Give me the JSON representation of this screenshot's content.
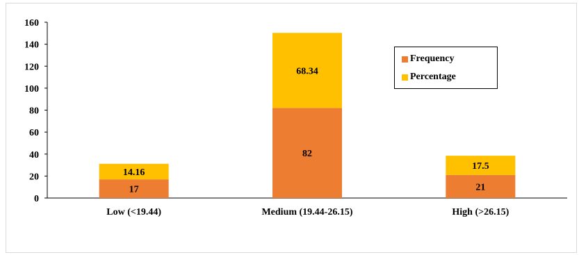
{
  "chart_data": {
    "type": "bar",
    "stacked": true,
    "categories": [
      "Low (<19.44)",
      "Medium (19.44-26.15)",
      "High (>26.15)"
    ],
    "series": [
      {
        "name": "Frequency",
        "values": [
          17,
          82,
          21
        ],
        "labels": [
          "17",
          "82",
          "21"
        ],
        "color": "#ED7D31"
      },
      {
        "name": "Percentage",
        "values": [
          14.16,
          68.34,
          17.5
        ],
        "labels": [
          "14.16",
          "68.34",
          "17.5"
        ],
        "color": "#FFC000"
      }
    ],
    "title": "",
    "xlabel": "",
    "ylabel": "",
    "ylim": [
      0,
      160
    ],
    "yticks": [
      "0",
      "20",
      "40",
      "60",
      "80",
      "100",
      "120",
      "140",
      "160"
    ],
    "grid": false,
    "legend_position": "top-right"
  }
}
